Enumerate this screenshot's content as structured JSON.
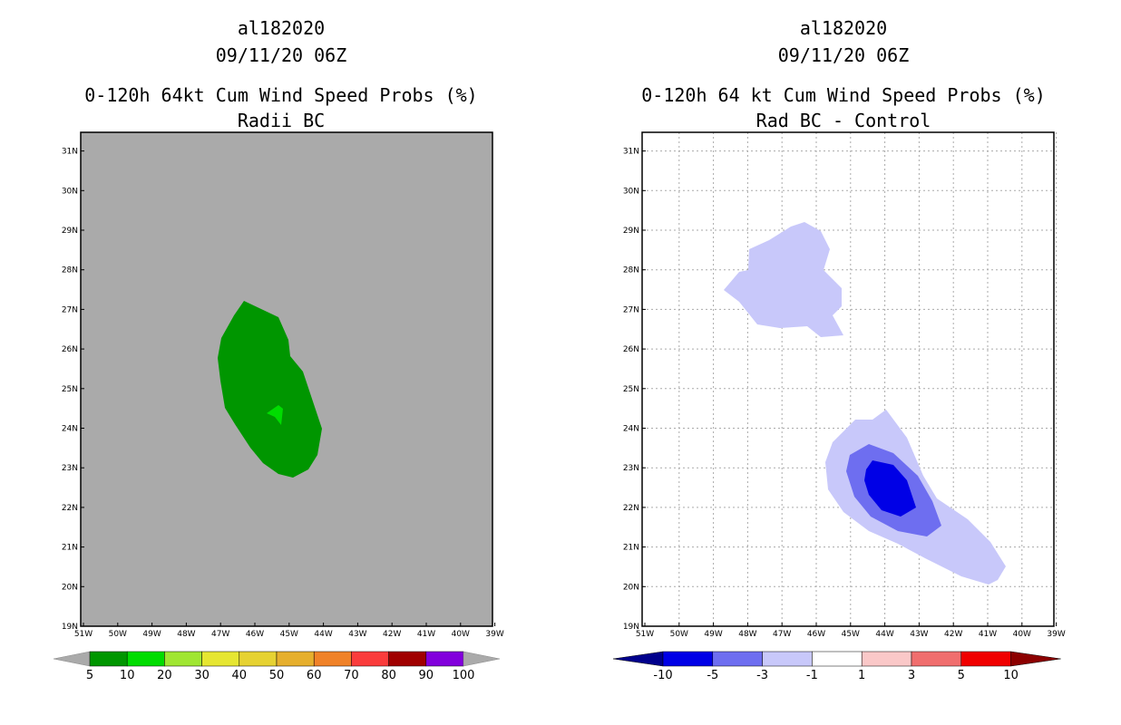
{
  "panels": [
    {
      "storm_id": "al182020",
      "datetime": "09/11/20 06Z",
      "product": "0-120h 64kt Cum Wind Speed Probs (%)",
      "subtitle": "Radii BC",
      "background_color": "#aaaaaa",
      "colorbar": {
        "labels": [
          "5",
          "10",
          "20",
          "30",
          "40",
          "50",
          "60",
          "70",
          "80",
          "90",
          "100"
        ],
        "colors": [
          "#009600",
          "#00dc00",
          "#a0e632",
          "#e6e632",
          "#e6d232",
          "#e6af2d",
          "#f08228",
          "#fa3c3c",
          "#a00000",
          "#8200dc"
        ],
        "end_color": "#aaaaaa"
      }
    },
    {
      "storm_id": "al182020",
      "datetime": "09/11/20 06Z",
      "product": "0-120h 64 kt Cum Wind Speed Probs (%)",
      "subtitle": "Rad BC - Control",
      "background_color": "#ffffff",
      "colorbar": {
        "labels": [
          "-10",
          "-5",
          "-3",
          "-1",
          "1",
          "3",
          "5",
          "10"
        ],
        "colors": [
          "#0000e6",
          "#6e6ef0",
          "#c8c8fa",
          "#ffffff",
          "#fac8c8",
          "#f06e6e",
          "#f00000"
        ],
        "end_left": "#00008c",
        "end_right": "#8c0000"
      }
    }
  ],
  "axes": {
    "lon_labels": [
      "51W",
      "50W",
      "49W",
      "48W",
      "47W",
      "46W",
      "45W",
      "44W",
      "43W",
      "42W",
      "41W",
      "40W",
      "39W"
    ],
    "lat_labels": [
      "19N",
      "20N",
      "21N",
      "22N",
      "23N",
      "24N",
      "25N",
      "26N",
      "27N",
      "28N",
      "29N",
      "30N",
      "31N"
    ]
  }
}
